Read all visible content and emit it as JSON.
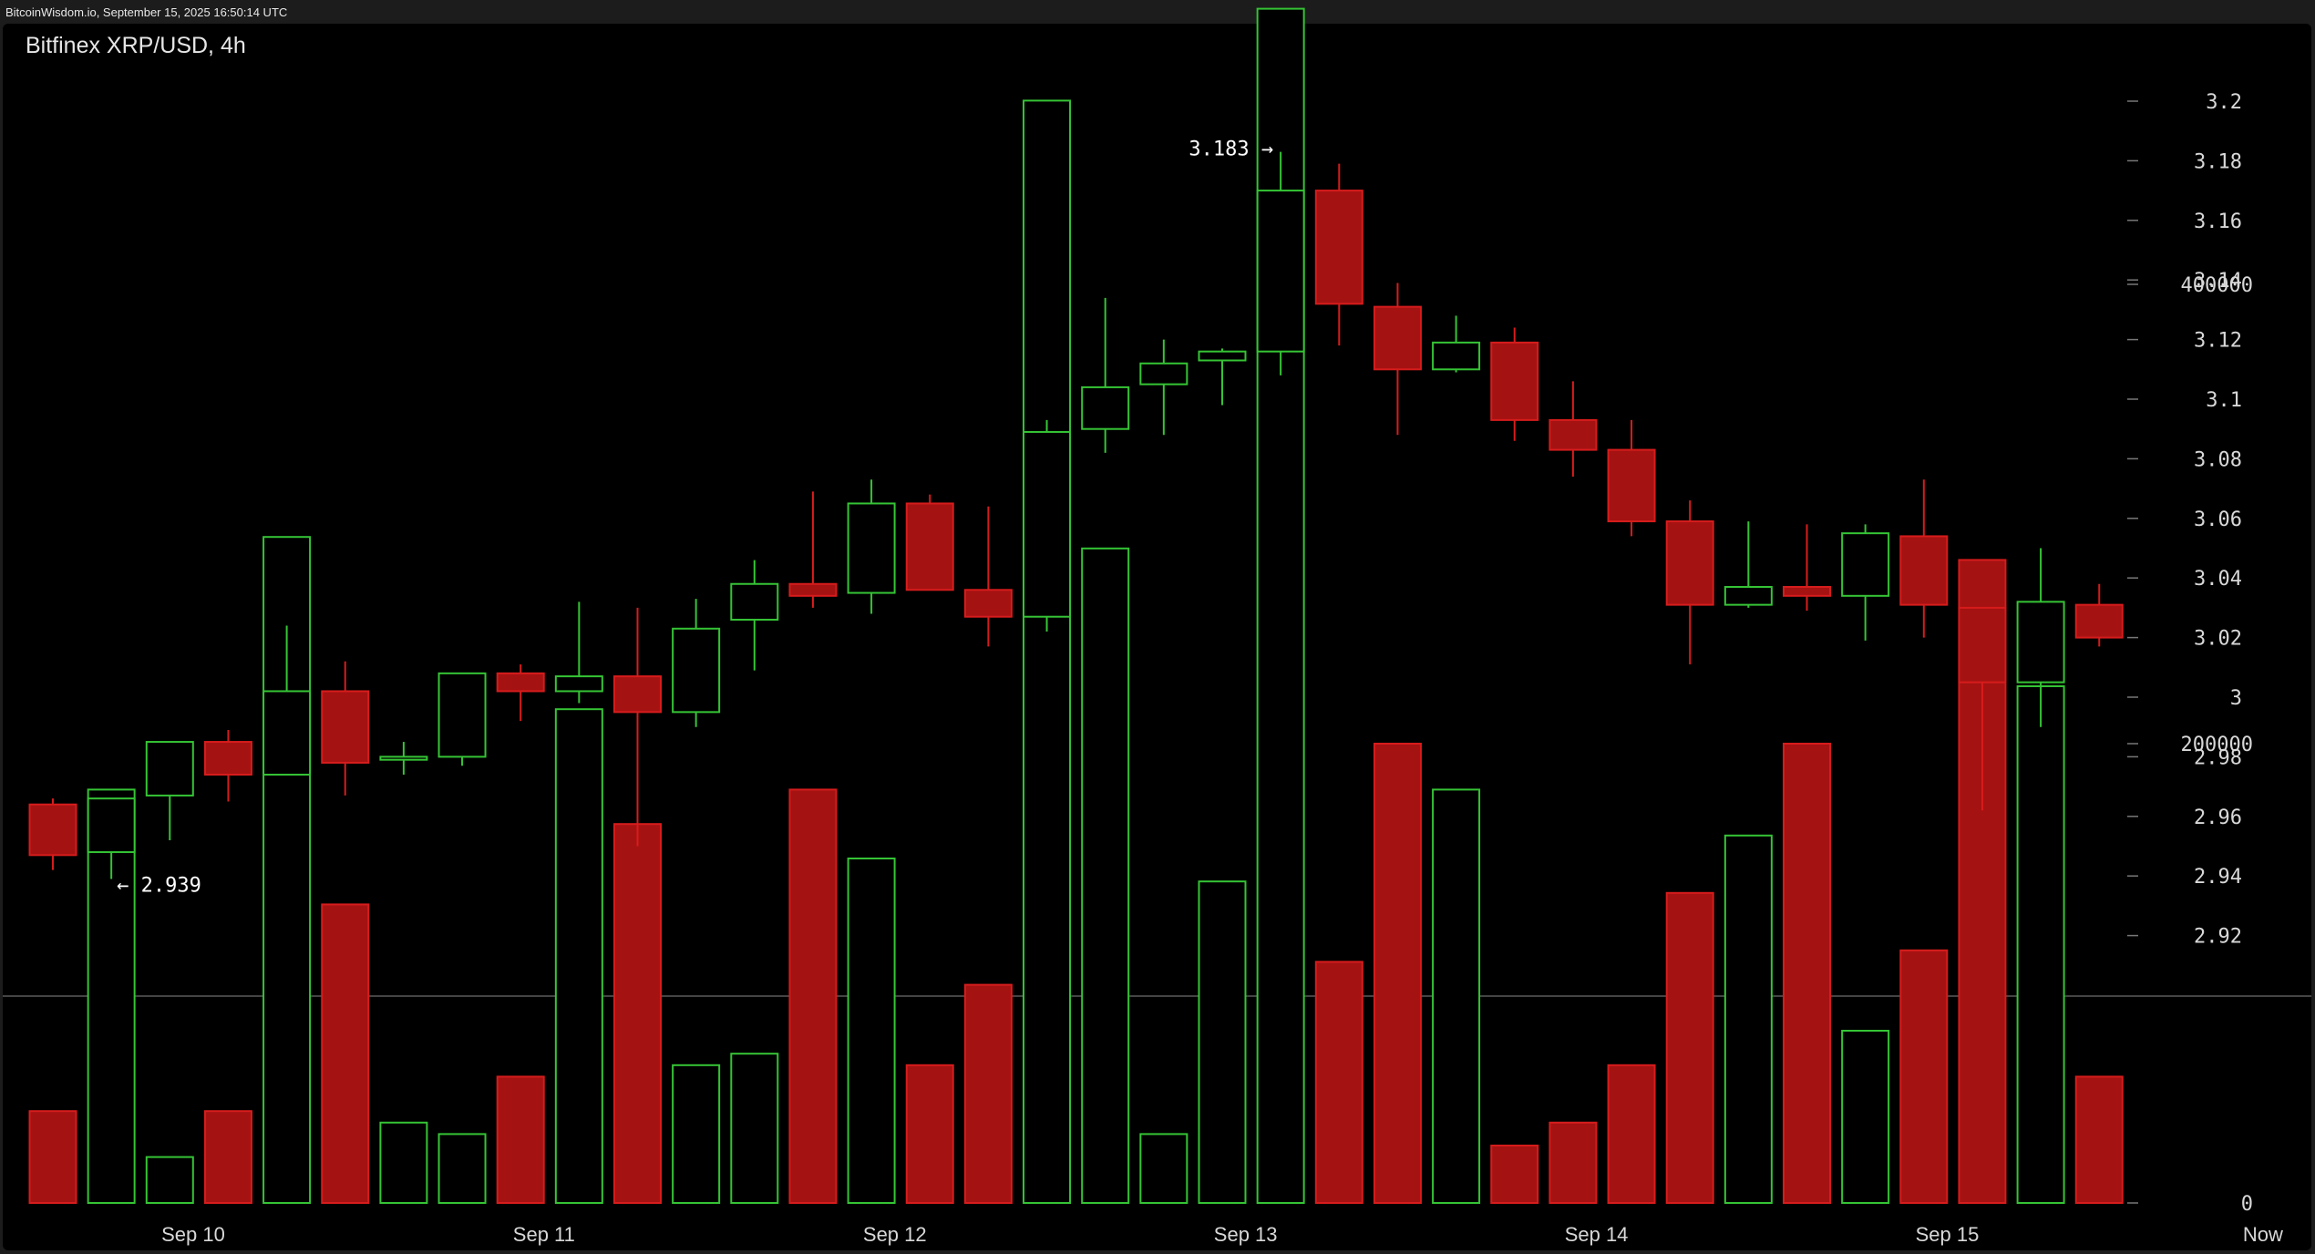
{
  "watermark": "BitcoinWisdom.io, September 15, 2025 16:50:14 UTC",
  "title": "Bitfinex XRP/USD, 4h",
  "colors": {
    "up": "#35c435",
    "down": "#a51212",
    "down_edge": "#d61c1c",
    "background": "#000000",
    "text": "#d8d8d8"
  },
  "chart_data": {
    "type": "candlestick",
    "exchange": "Bitfinex",
    "pair": "XRP/USD",
    "interval": "4h",
    "price_ylim": [
      2.9,
      3.21
    ],
    "price_ticks": [
      "3.2",
      "3.18",
      "3.16",
      "3.14",
      "3.12",
      "3.1",
      "3.08",
      "3.06",
      "3.04",
      "3.02",
      "3",
      "2.98",
      "2.96",
      "2.94",
      "2.92"
    ],
    "volume_ylim": [
      0,
      560000
    ],
    "volume_ticks": [
      "400000",
      "200000",
      "0"
    ],
    "x_labels": [
      {
        "label": "Sep 10",
        "index": 2.4
      },
      {
        "label": "Sep 11",
        "index": 8.4
      },
      {
        "label": "Sep 12",
        "index": 14.4
      },
      {
        "label": "Sep 13",
        "index": 20.4
      },
      {
        "label": "Sep 14",
        "index": 26.4
      },
      {
        "label": "Sep 15",
        "index": 32.4
      },
      {
        "label": "Now",
        "index": 37.8
      }
    ],
    "annotations": [
      {
        "text": "3.183 →",
        "index": 21,
        "value": 3.183,
        "side": "left"
      },
      {
        "text": "← 2.939",
        "index": 1,
        "value": 2.939,
        "side": "right"
      }
    ],
    "candles": [
      {
        "o": 2.964,
        "h": 2.966,
        "l": 2.942,
        "c": 2.947,
        "v": 40000
      },
      {
        "o": 2.948,
        "h": 2.966,
        "l": 2.939,
        "c": 2.966,
        "v": 180000
      },
      {
        "o": 2.967,
        "h": 2.985,
        "l": 2.952,
        "c": 2.985,
        "v": 20000
      },
      {
        "o": 2.985,
        "h": 2.989,
        "l": 2.965,
        "c": 2.974,
        "v": 40000
      },
      {
        "o": 2.974,
        "h": 3.024,
        "l": 2.974,
        "c": 3.002,
        "v": 290000
      },
      {
        "o": 3.002,
        "h": 3.012,
        "l": 2.967,
        "c": 2.978,
        "v": 130000
      },
      {
        "o": 2.979,
        "h": 2.985,
        "l": 2.974,
        "c": 2.98,
        "v": 35000
      },
      {
        "o": 2.98,
        "h": 3.008,
        "l": 2.977,
        "c": 3.008,
        "v": 30000
      },
      {
        "o": 3.008,
        "h": 3.011,
        "l": 2.992,
        "c": 3.002,
        "v": 55000
      },
      {
        "o": 3.002,
        "h": 3.032,
        "l": 2.998,
        "c": 3.007,
        "v": 215000
      },
      {
        "o": 3.007,
        "h": 3.03,
        "l": 2.95,
        "c": 2.995,
        "v": 165000
      },
      {
        "o": 2.995,
        "h": 3.033,
        "l": 2.99,
        "c": 3.023,
        "v": 60000
      },
      {
        "o": 3.026,
        "h": 3.046,
        "l": 3.009,
        "c": 3.038,
        "v": 65000
      },
      {
        "o": 3.038,
        "h": 3.069,
        "l": 3.03,
        "c": 3.034,
        "v": 180000
      },
      {
        "o": 3.035,
        "h": 3.073,
        "l": 3.028,
        "c": 3.065,
        "v": 150000
      },
      {
        "o": 3.065,
        "h": 3.068,
        "l": 3.036,
        "c": 3.036,
        "v": 60000
      },
      {
        "o": 3.036,
        "h": 3.064,
        "l": 3.017,
        "c": 3.027,
        "v": 95000
      },
      {
        "o": 3.027,
        "h": 3.093,
        "l": 3.022,
        "c": 3.089,
        "v": 480000
      },
      {
        "o": 3.09,
        "h": 3.134,
        "l": 3.082,
        "c": 3.104,
        "v": 285000
      },
      {
        "o": 3.105,
        "h": 3.12,
        "l": 3.088,
        "c": 3.112,
        "v": 30000
      },
      {
        "o": 3.113,
        "h": 3.117,
        "l": 3.098,
        "c": 3.116,
        "v": 140000
      },
      {
        "o": 3.116,
        "h": 3.183,
        "l": 3.108,
        "c": 3.17,
        "v": 520000
      },
      {
        "o": 3.17,
        "h": 3.179,
        "l": 3.118,
        "c": 3.132,
        "v": 105000
      },
      {
        "o": 3.131,
        "h": 3.139,
        "l": 3.088,
        "c": 3.11,
        "v": 200000
      },
      {
        "o": 3.11,
        "h": 3.128,
        "l": 3.109,
        "c": 3.119,
        "v": 180000
      },
      {
        "o": 3.119,
        "h": 3.124,
        "l": 3.086,
        "c": 3.093,
        "v": 25000
      },
      {
        "o": 3.093,
        "h": 3.106,
        "l": 3.074,
        "c": 3.083,
        "v": 35000
      },
      {
        "o": 3.083,
        "h": 3.093,
        "l": 3.054,
        "c": 3.059,
        "v": 60000
      },
      {
        "o": 3.059,
        "h": 3.066,
        "l": 3.011,
        "c": 3.031,
        "v": 135000
      },
      {
        "o": 3.031,
        "h": 3.059,
        "l": 3.03,
        "c": 3.037,
        "v": 160000
      },
      {
        "o": 3.037,
        "h": 3.058,
        "l": 3.029,
        "c": 3.034,
        "v": 200000
      },
      {
        "o": 3.034,
        "h": 3.058,
        "l": 3.019,
        "c": 3.055,
        "v": 75000
      },
      {
        "o": 3.054,
        "h": 3.073,
        "l": 3.02,
        "c": 3.031,
        "v": 110000
      },
      {
        "o": 3.03,
        "h": 3.03,
        "l": 2.962,
        "c": 3.005,
        "v": 280000
      },
      {
        "o": 3.005,
        "h": 3.05,
        "l": 2.99,
        "c": 3.032,
        "v": 225000
      },
      {
        "o": 3.031,
        "h": 3.038,
        "l": 3.017,
        "c": 3.02,
        "v": 55000
      }
    ]
  }
}
